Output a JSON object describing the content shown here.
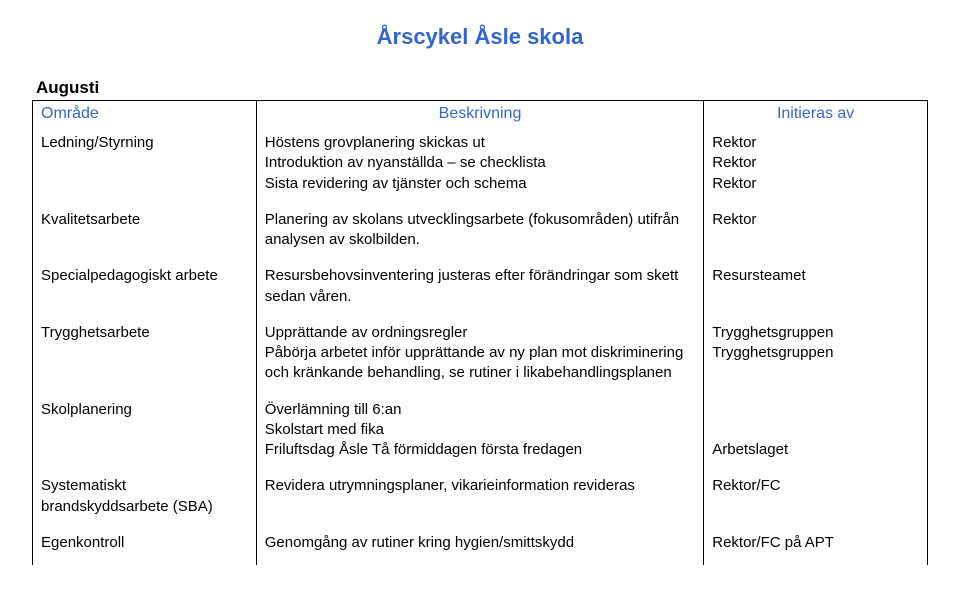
{
  "title": "Årscykel Åsle skola",
  "month": "Augusti",
  "headers": {
    "col0": "Område",
    "col1": "Beskrivning",
    "col2": "Initieras av"
  },
  "rows": [
    {
      "area": "Ledning/Styrning",
      "desc": [
        "Höstens grovplanering skickas ut",
        "Introduktion av nyanställda – se checklista",
        "Sista revidering av tjänster och schema"
      ],
      "init": [
        "Rektor",
        "Rektor",
        "Rektor"
      ]
    },
    {
      "area": "Kvalitetsarbete",
      "desc": [
        "Planering av skolans utvecklingsarbete (fokusområden) utifrån analysen av skolbilden."
      ],
      "init": [
        "Rektor"
      ]
    },
    {
      "area": "Specialpedagogiskt arbete",
      "desc": [
        "Resursbehovsinventering justeras efter förändringar som skett sedan våren."
      ],
      "init": [
        "Resursteamet"
      ]
    },
    {
      "area": "Trygghetsarbete",
      "desc": [
        "Upprättande av ordningsregler",
        "Påbörja arbetet inför upprättande av ny plan mot diskriminering och kränkande behandling, se rutiner i likabehandlingsplanen"
      ],
      "init": [
        "Trygghetsgruppen",
        "Trygghetsgruppen"
      ]
    },
    {
      "area": "Skolplanering",
      "desc": [
        "Överlämning till 6:an",
        "Skolstart med fika",
        "Friluftsdag Åsle Tå förmiddagen första fredagen"
      ],
      "init": [
        "",
        "",
        "Arbetslaget"
      ]
    },
    {
      "area": "Systematiskt brandskyddsarbete (SBA)",
      "desc": [
        "Revidera utrymningsplaner, vikarieinformation revideras"
      ],
      "init": [
        "Rektor/FC"
      ]
    },
    {
      "area": "Egenkontroll",
      "desc": [
        "Genomgång av rutiner kring hygien/smittskydd"
      ],
      "init": [
        "Rektor/FC på APT"
      ]
    }
  ]
}
